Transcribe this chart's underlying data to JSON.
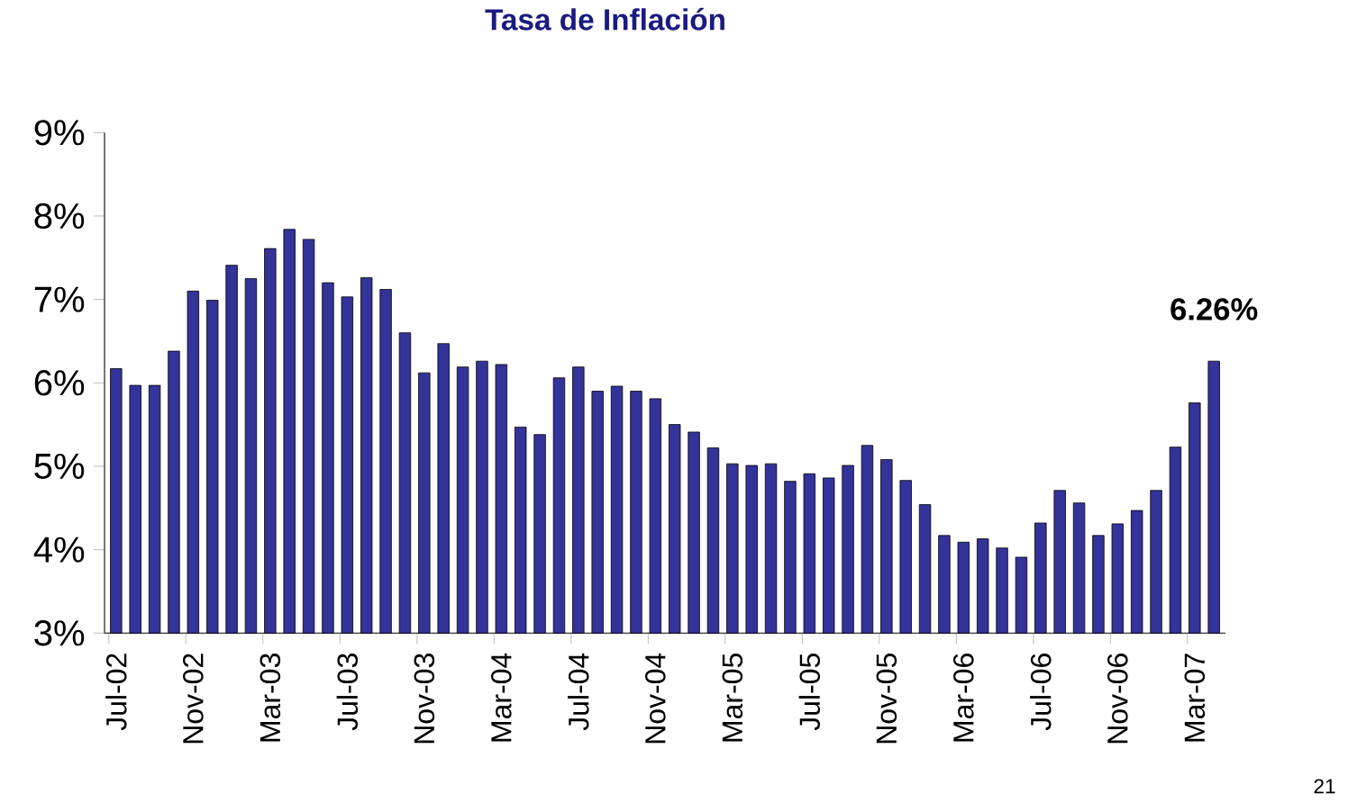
{
  "chart_data": {
    "type": "bar",
    "title": "Tasa de Inflación",
    "categories": [
      "Jul-02",
      null,
      null,
      null,
      "Nov-02",
      null,
      null,
      null,
      "Mar-03",
      null,
      null,
      null,
      "Jul-03",
      null,
      null,
      null,
      "Nov-03",
      null,
      null,
      null,
      "Mar-04",
      null,
      null,
      null,
      "Jul-04",
      null,
      null,
      null,
      "Nov-04",
      null,
      null,
      null,
      "Mar-05",
      null,
      null,
      null,
      "Jul-05",
      null,
      null,
      null,
      "Nov-05",
      null,
      null,
      null,
      "Mar-06",
      null,
      null,
      null,
      "Jul-06",
      null,
      null,
      null,
      "Nov-06",
      null,
      null,
      null,
      "Mar-07",
      null
    ],
    "values": [
      6.17,
      5.97,
      5.97,
      6.38,
      7.1,
      6.99,
      7.41,
      7.25,
      7.61,
      7.84,
      7.72,
      7.2,
      7.03,
      7.26,
      7.12,
      6.6,
      6.12,
      6.47,
      6.19,
      6.26,
      6.22,
      5.47,
      5.38,
      6.06,
      6.19,
      5.9,
      5.96,
      5.9,
      5.81,
      5.5,
      5.41,
      5.22,
      5.03,
      5.01,
      5.03,
      4.82,
      4.91,
      4.86,
      5.01,
      5.25,
      5.08,
      4.83,
      4.54,
      4.17,
      4.09,
      4.13,
      4.02,
      3.91,
      4.32,
      4.71,
      4.56,
      4.17,
      4.31,
      4.47,
      4.71,
      5.23,
      5.76,
      6.26
    ],
    "value_labels": [
      null,
      null,
      null,
      null,
      null,
      null,
      null,
      null,
      null,
      null,
      null,
      null,
      null,
      null,
      null,
      null,
      null,
      null,
      null,
      null,
      null,
      null,
      null,
      null,
      null,
      null,
      null,
      null,
      null,
      null,
      null,
      null,
      null,
      null,
      null,
      null,
      null,
      null,
      null,
      null,
      null,
      null,
      null,
      null,
      null,
      null,
      null,
      null,
      null,
      null,
      null,
      null,
      null,
      null,
      null,
      null,
      null,
      "6.26%"
    ],
    "color": "#333399",
    "ylim": [
      3,
      9
    ],
    "yticks": [
      {
        "value": 3,
        "label": "3%"
      },
      {
        "value": 4,
        "label": "4%"
      },
      {
        "value": 5,
        "label": "5%"
      },
      {
        "value": 6,
        "label": "6%"
      },
      {
        "value": 7,
        "label": "7%"
      },
      {
        "value": 8,
        "label": "8%"
      },
      {
        "value": 9,
        "label": "9%"
      }
    ],
    "annotations": [
      "21"
    ]
  }
}
